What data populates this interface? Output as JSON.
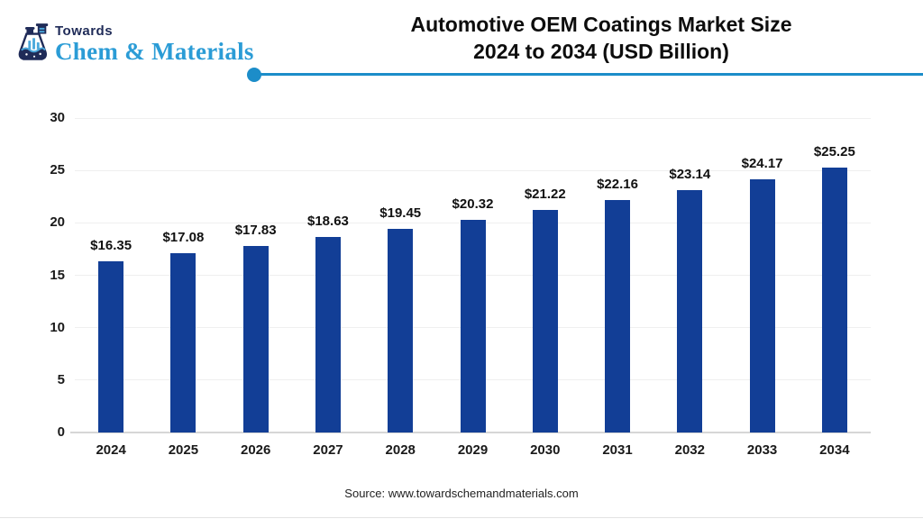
{
  "brand": {
    "towards": "Towards",
    "name": "Chem & Materials"
  },
  "title": {
    "line1": "Automotive OEM Coatings Market Size",
    "line2": "2024 to 2034 (USD Billion)"
  },
  "source": "Source: www.towardschemandmaterials.com",
  "colors": {
    "bar": "#123E96",
    "accent": "#1C8DC9",
    "brand_navy": "#1F2B58",
    "brand_blue": "#2B9CD6",
    "grid": "#EFEFEF",
    "axis": "#D6D6D6"
  },
  "chart_data": {
    "type": "bar",
    "title": "Automotive OEM Coatings Market Size 2024 to 2034 (USD Billion)",
    "categories": [
      "2024",
      "2025",
      "2026",
      "2027",
      "2028",
      "2029",
      "2030",
      "2031",
      "2032",
      "2033",
      "2034"
    ],
    "values": [
      16.35,
      17.08,
      17.83,
      18.63,
      19.45,
      20.32,
      21.22,
      22.16,
      23.14,
      24.17,
      25.25
    ],
    "value_labels": [
      "$16.35",
      "$17.08",
      "$17.83",
      "$18.63",
      "$19.45",
      "$20.32",
      "$21.22",
      "$22.16",
      "$23.14",
      "$24.17",
      "$25.25"
    ],
    "xlabel": "",
    "ylabel": "",
    "ylim": [
      0,
      30
    ],
    "yticks": [
      0,
      5,
      10,
      15,
      20,
      25,
      30
    ],
    "grid": true,
    "legend": false,
    "bar_color": "#123E96"
  }
}
